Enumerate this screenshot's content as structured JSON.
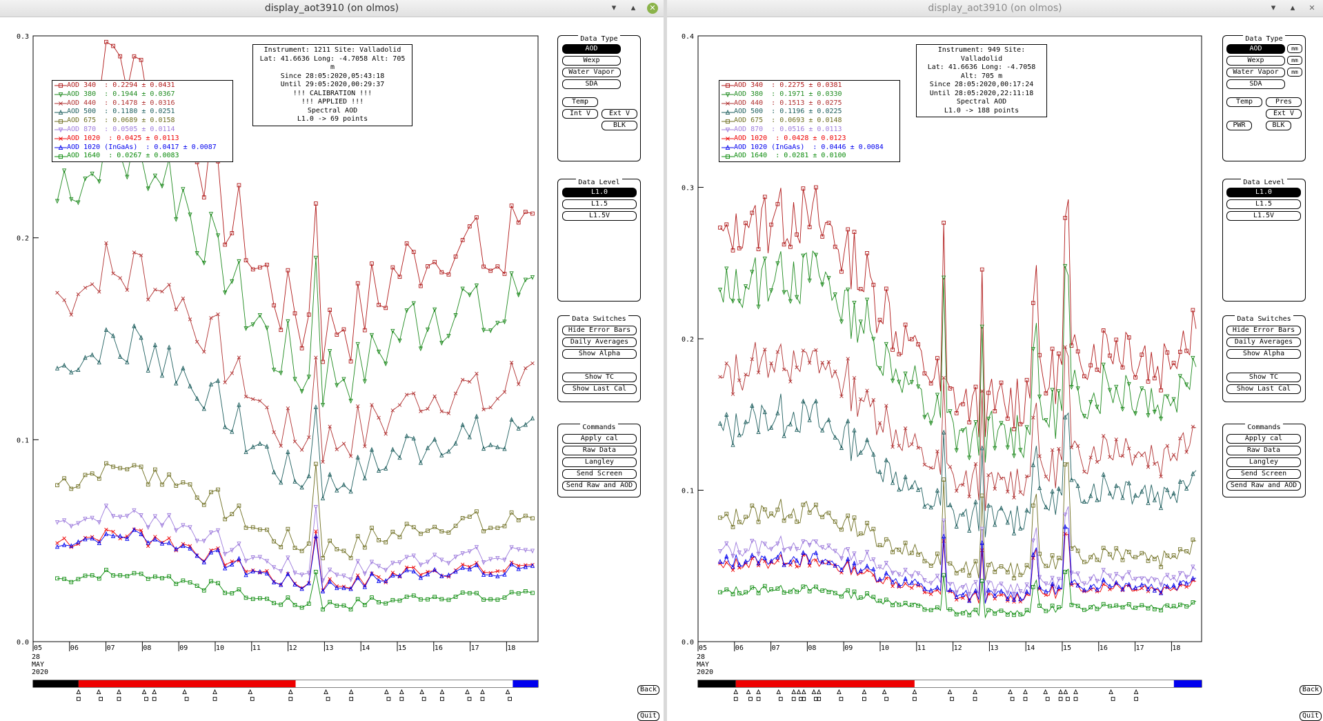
{
  "colors": {
    "aod340": "#b01818",
    "aod380": "#1e8a1e",
    "aod440": "#b03030",
    "aod500": "#1f5f5f",
    "aod675": "#6e6e20",
    "aod870": "#9d7bdc",
    "aod1020": "#ee0000",
    "aod1020ingaas": "#0000ee",
    "aod1640": "#0a8a0a"
  },
  "left": {
    "title": "display_aot3910 (on olmos)",
    "info": [
      "Instrument: 1211 Site: Valladolid",
      "Lat: 41.6636 Long: -4.7058 Alt: 705 m",
      "Since 28:05:2020,05:43:18",
      "Until 29:05:2020,00:29:37",
      "!!! CALIBRATION !!!",
      "!!!   APPLIED   !!!",
      "Spectral AOD",
      "L1.0 -> 69 points"
    ],
    "legend": [
      "AOD 340  : 0.2294 ± 0.0431",
      "AOD 380  : 0.1944 ± 0.0367",
      "AOD 440  : 0.1478 ± 0.0316",
      "AOD 500  : 0.1180 ± 0.0251",
      "AOD 675  : 0.0689 ± 0.0158",
      "AOD 870  : 0.0505 ± 0.0114",
      "AOD 1020  : 0.0425 ± 0.0113",
      "AOD 1020 (InGaAs)  : 0.0417 ± 0.0087",
      "AOD 1640  : 0.0267 ± 0.0083"
    ],
    "yticks": [
      "0.0",
      "0.1",
      "0.2",
      "0.3"
    ],
    "xticks": [
      "05",
      "06",
      "07",
      "08",
      "09",
      "10",
      "11",
      "12",
      "13",
      "14",
      "15",
      "16",
      "17",
      "18"
    ],
    "date": [
      "28",
      "MAY",
      "2020"
    ],
    "power_buttons": []
  },
  "right": {
    "title": "display_aot3910 (on olmos)",
    "info": [
      "Instrument: 949 Site: Valladolid",
      "Lat: 41.6636 Long: -4.7058 Alt: 705 m",
      "Since 28:05:2020,00:17:24",
      "Until 28:05:2020,22:11:18",
      "Spectral AOD",
      "L1.0 -> 188 points"
    ],
    "legend": [
      "AOD 340  : 0.2275 ± 0.0381",
      "AOD 380  : 0.1971 ± 0.0330",
      "AOD 440  : 0.1513 ± 0.0275",
      "AOD 500  : 0.1196 ± 0.0225",
      "AOD 675  : 0.0693 ± 0.0148",
      "AOD 870  : 0.0516 ± 0.0113",
      "AOD 1020  : 0.0428 ± 0.0123",
      "AOD 1020 (InGaAs)  : 0.0446 ± 0.0084",
      "AOD 1640  : 0.0281 ± 0.0100"
    ],
    "yticks": [
      "0.0",
      "0.1",
      "0.2",
      "0.3",
      "0.4"
    ],
    "xticks": [
      "05",
      "06",
      "07",
      "08",
      "09",
      "10",
      "11",
      "12",
      "13",
      "14",
      "15",
      "16",
      "17",
      "18"
    ],
    "date": [
      "28",
      "MAY",
      "2020"
    ],
    "power_buttons": [
      "PWR",
      "BLK"
    ]
  },
  "panels": {
    "data_type": "Data Type",
    "data_level": "Data Level",
    "data_switches": "Data Switches",
    "commands": "Commands",
    "type_buttons": [
      "AOD",
      "Wexp",
      "Water Vapor",
      "SDA"
    ],
    "temp": "Temp",
    "pres": "Pres",
    "int_v": "Int V",
    "ext_v": "Ext V",
    "blk": "BLK",
    "mm": "mm",
    "levels": [
      "L1.0",
      "L1.5",
      "L1.5V"
    ],
    "switches": [
      "Hide Error Bars",
      "Daily Averages",
      "Show Alpha"
    ],
    "switches2": [
      "Show TC",
      "Show Last Cal"
    ],
    "commands_list": [
      "Apply cal",
      "Raw Data",
      "Langley",
      "Send Screen",
      "Send Raw and AOD"
    ],
    "back": "Back",
    "quit": "Quit"
  }
}
